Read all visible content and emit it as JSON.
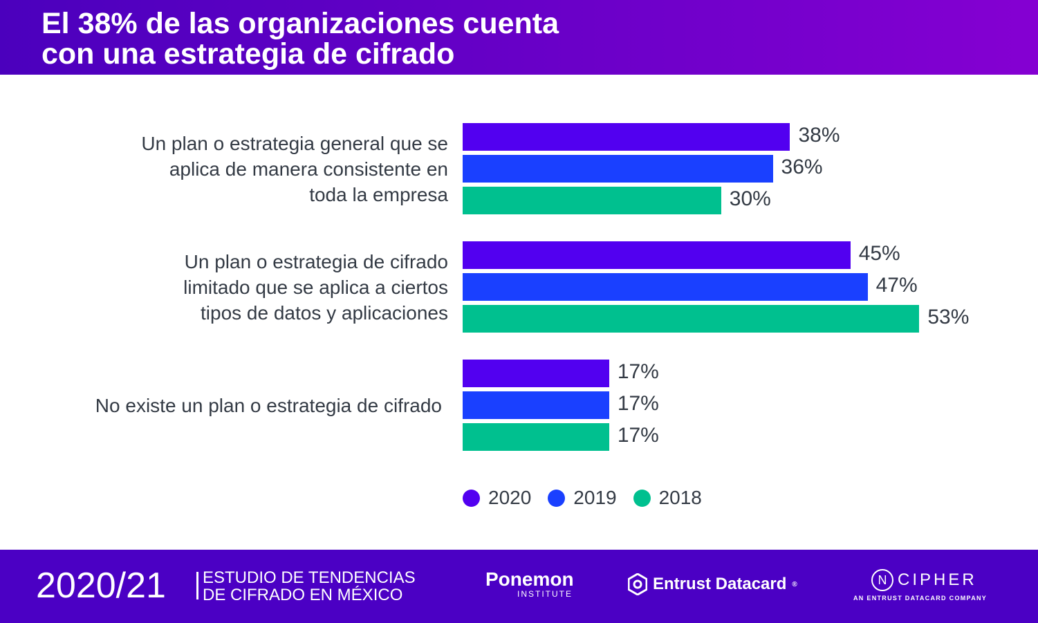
{
  "title": "El 38% de las organizaciones cuenta con una estrategia de cifrado",
  "title_lines": [
    "El 38% de las organizaciones cuenta",
    "con una estrategia de cifrado"
  ],
  "chart_data": {
    "type": "bar",
    "orientation": "horizontal",
    "categories": [
      [
        "Un plan o estrategia general que se",
        "aplica de manera consistente en",
        "toda la empresa"
      ],
      [
        "Un plan o estrategia de cifrado",
        "limitado que se aplica a ciertos",
        "tipos de datos y aplicaciones"
      ],
      [
        "No existe un plan o estrategia de cifrado"
      ]
    ],
    "series": [
      {
        "name": "2020",
        "color": "#5200f0",
        "values": [
          38,
          45,
          17
        ]
      },
      {
        "name": "2019",
        "color": "#1a40ff",
        "values": [
          36,
          47,
          17
        ]
      },
      {
        "name": "2018",
        "color": "#00c08f",
        "values": [
          30,
          53,
          17
        ]
      }
    ],
    "value_suffix": "%",
    "legend_position": "bottom",
    "grid": false
  },
  "footer": {
    "year": "2020/21",
    "study_lines": [
      "ESTUDIO DE TENDENCIAS",
      "DE CIFRADO EN MÉXICO"
    ],
    "ponemon": "Ponemon",
    "ponemon_sub": "INSTITUTE",
    "entrust": "Entrust Datacard",
    "entrust_mark": "®",
    "ncipher_n": "N",
    "ncipher": "CIPHER",
    "ncipher_sub": "AN ENTRUST DATACARD COMPANY"
  }
}
